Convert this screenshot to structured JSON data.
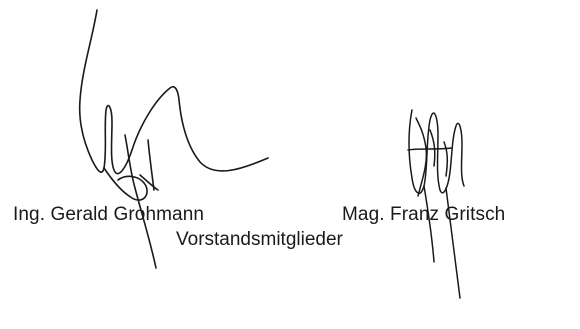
{
  "signatories": {
    "left_name": "Ing. Gerald Grohmann",
    "right_name": "Mag. Franz Gritsch",
    "role": "Vorstandsmitglieder"
  },
  "ink_color": "#1a1a1a"
}
